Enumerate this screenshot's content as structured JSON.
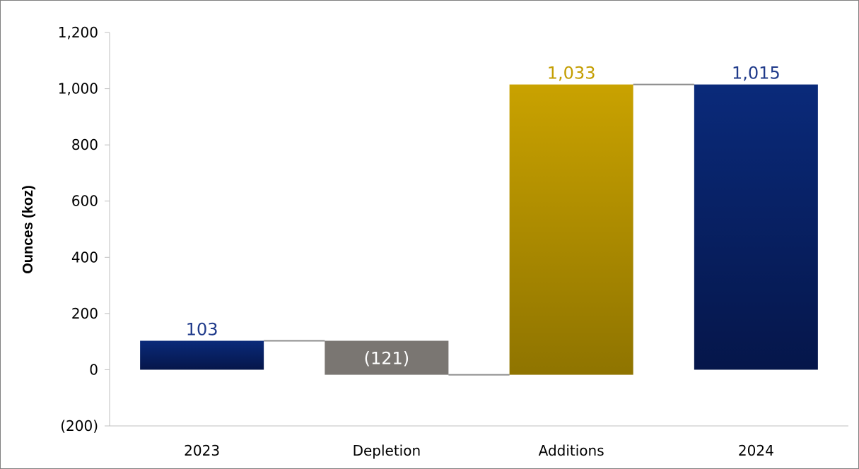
{
  "chart_data": {
    "type": "bar",
    "subtype": "waterfall",
    "categories": [
      "2023",
      "Depletion",
      "Additions",
      "2024"
    ],
    "values": [
      103,
      -121,
      1033,
      1015
    ],
    "data_labels": [
      "103",
      "(121)",
      "1,033",
      "1,015"
    ],
    "bar_roles": [
      "total",
      "decrease",
      "increase",
      "total"
    ],
    "ylabel": "Ounces (koz)",
    "ylim": [
      -200,
      1200
    ],
    "yticks": [
      -200,
      0,
      200,
      400,
      600,
      800,
      1000,
      1200
    ],
    "ytick_labels": [
      "(200)",
      "0",
      "200",
      "400",
      "600",
      "800",
      "1,000",
      "1,200"
    ],
    "grid": false,
    "legend": "none",
    "colors": {
      "total_top": "#0a2a7a",
      "total_bottom": "#05164a",
      "decrease": "#7a7672",
      "increase_top": "#c9a200",
      "increase_bottom": "#8f7400",
      "connector": "#8c8c8c",
      "axis": "#bfbfbf",
      "label_total": "#1f3a8a",
      "label_decrease": "#ffffff",
      "label_increase": "#c39d00"
    }
  }
}
